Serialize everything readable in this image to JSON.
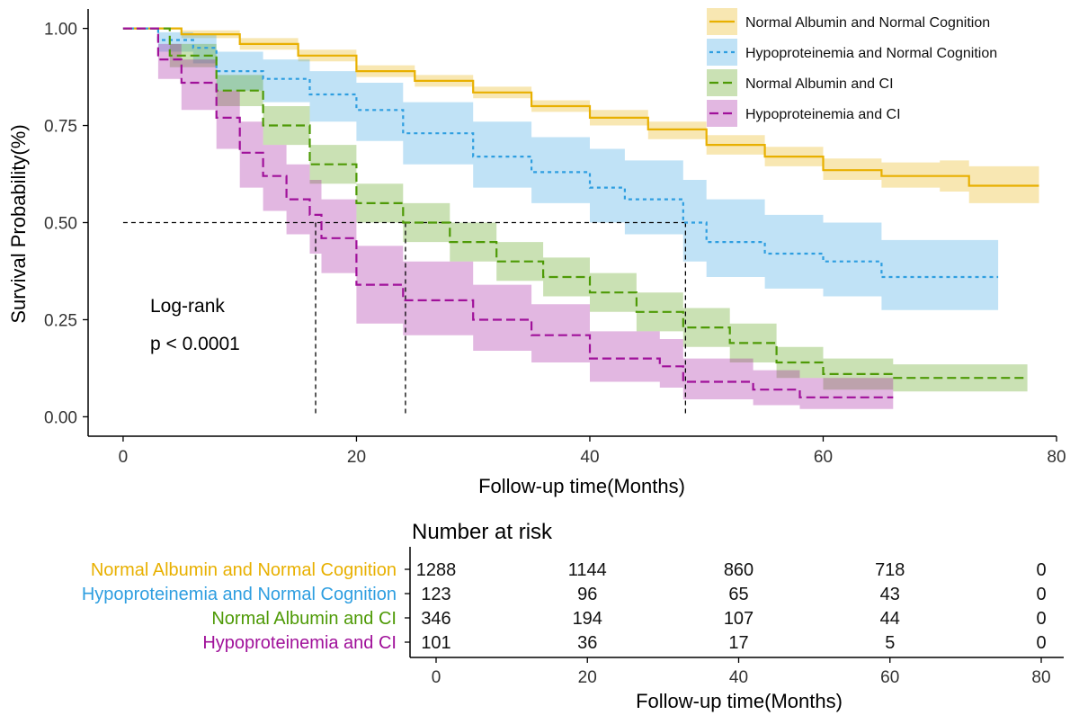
{
  "chart_data": {
    "type": "line",
    "subtype": "kaplan-meier",
    "xlabel": "Follow-up time(Months)",
    "ylabel": "Survival Probability(%)",
    "xlim": [
      -3,
      80
    ],
    "ylim": [
      -0.05,
      1.05
    ],
    "xticks": [
      0,
      20,
      40,
      60,
      80
    ],
    "yticks": [
      0.0,
      0.25,
      0.5,
      0.75,
      1.0
    ],
    "ytick_labels": [
      "0.00",
      "0.25",
      "0.50",
      "0.75",
      "1.00"
    ],
    "legend_position": "top-right",
    "annotation": {
      "line1": "Log-rank",
      "line2": "p < 0.0001"
    },
    "median_reference": {
      "y": 0.5,
      "medians": [
        16.5,
        24.2,
        48.2
      ]
    },
    "series": [
      {
        "name": "Normal Albumin and Normal Cognition",
        "color": "#e8b000",
        "dash": "solid",
        "x": [
          0,
          5,
          10,
          15,
          20,
          25,
          30,
          35,
          40,
          45,
          50,
          55,
          60,
          65,
          70,
          72.5,
          78.5
        ],
        "y": [
          1.0,
          0.985,
          0.96,
          0.93,
          0.89,
          0.865,
          0.835,
          0.8,
          0.77,
          0.74,
          0.7,
          0.67,
          0.635,
          0.62,
          0.62,
          0.595,
          0.595
        ],
        "lower": [
          1.0,
          0.975,
          0.945,
          0.915,
          0.875,
          0.85,
          0.82,
          0.785,
          0.75,
          0.715,
          0.675,
          0.645,
          0.61,
          0.59,
          0.58,
          0.55,
          0.55
        ],
        "upper": [
          1.0,
          0.995,
          0.975,
          0.945,
          0.905,
          0.88,
          0.85,
          0.815,
          0.79,
          0.76,
          0.725,
          0.695,
          0.665,
          0.655,
          0.66,
          0.645,
          0.645
        ]
      },
      {
        "name": "Hypoproteinemia and Normal Cognition",
        "color": "#2e9ee0",
        "dash": "dotted",
        "x": [
          0,
          3,
          6,
          8,
          12,
          16,
          20,
          24,
          30,
          35,
          40,
          43,
          48,
          50,
          55,
          60,
          65,
          75
        ],
        "y": [
          1.0,
          0.97,
          0.95,
          0.89,
          0.87,
          0.83,
          0.79,
          0.73,
          0.67,
          0.63,
          0.59,
          0.56,
          0.5,
          0.45,
          0.42,
          0.4,
          0.36,
          0.36
        ],
        "lower": [
          1.0,
          0.94,
          0.91,
          0.84,
          0.81,
          0.76,
          0.71,
          0.65,
          0.59,
          0.55,
          0.5,
          0.47,
          0.4,
          0.36,
          0.33,
          0.31,
          0.275,
          0.275
        ],
        "upper": [
          1.0,
          0.99,
          0.985,
          0.94,
          0.92,
          0.89,
          0.86,
          0.81,
          0.76,
          0.72,
          0.69,
          0.66,
          0.61,
          0.56,
          0.52,
          0.5,
          0.455,
          0.455
        ]
      },
      {
        "name": "Normal Albumin and CI",
        "color": "#4e9a06",
        "dash": "dashed",
        "x": [
          0,
          4,
          8,
          12,
          16,
          20,
          24,
          28,
          32,
          36,
          40,
          44,
          48,
          52,
          56,
          60,
          66,
          77.5
        ],
        "y": [
          1.0,
          0.93,
          0.84,
          0.75,
          0.65,
          0.55,
          0.5,
          0.45,
          0.4,
          0.36,
          0.32,
          0.27,
          0.23,
          0.19,
          0.14,
          0.11,
          0.1,
          0.1
        ],
        "lower": [
          1.0,
          0.9,
          0.8,
          0.7,
          0.6,
          0.5,
          0.45,
          0.4,
          0.35,
          0.31,
          0.27,
          0.22,
          0.18,
          0.14,
          0.1,
          0.07,
          0.065,
          0.065
        ],
        "upper": [
          1.0,
          0.96,
          0.88,
          0.8,
          0.7,
          0.6,
          0.55,
          0.5,
          0.45,
          0.41,
          0.37,
          0.32,
          0.28,
          0.24,
          0.18,
          0.15,
          0.135,
          0.135
        ]
      },
      {
        "name": "Hypoproteinemia and CI",
        "color": "#a0119a",
        "dash": "dashed",
        "x": [
          0,
          3,
          5,
          8,
          10,
          12,
          14,
          16,
          17,
          20,
          24,
          30,
          35,
          40,
          46,
          48,
          54,
          58,
          66
        ],
        "y": [
          1.0,
          0.92,
          0.86,
          0.77,
          0.68,
          0.62,
          0.56,
          0.52,
          0.46,
          0.34,
          0.3,
          0.25,
          0.21,
          0.15,
          0.13,
          0.09,
          0.07,
          0.05,
          0.05
        ],
        "lower": [
          1.0,
          0.87,
          0.79,
          0.69,
          0.59,
          0.53,
          0.47,
          0.42,
          0.37,
          0.24,
          0.21,
          0.17,
          0.14,
          0.09,
          0.075,
          0.045,
          0.03,
          0.02,
          0.02
        ],
        "upper": [
          1.0,
          0.96,
          0.92,
          0.84,
          0.76,
          0.7,
          0.65,
          0.61,
          0.56,
          0.44,
          0.4,
          0.34,
          0.29,
          0.22,
          0.2,
          0.15,
          0.12,
          0.1,
          0.1
        ]
      }
    ],
    "risk_table": {
      "title": "Number at risk",
      "xlabel": "Follow-up time(Months)",
      "times": [
        0,
        20,
        40,
        60,
        80
      ],
      "rows": [
        {
          "name": "Normal Albumin and Normal Cognition",
          "counts": [
            "1288",
            "1144",
            "860",
            "718",
            "0"
          ]
        },
        {
          "name": "Hypoproteinemia and Normal Cognition",
          "counts": [
            "123",
            "96",
            "65",
            "43",
            "0"
          ]
        },
        {
          "name": "Normal Albumin and CI",
          "counts": [
            "346",
            "194",
            "107",
            "44",
            "0"
          ]
        },
        {
          "name": "Hypoproteinemia and CI",
          "counts": [
            "101",
            "36",
            "17",
            "5",
            "0"
          ]
        }
      ]
    }
  }
}
